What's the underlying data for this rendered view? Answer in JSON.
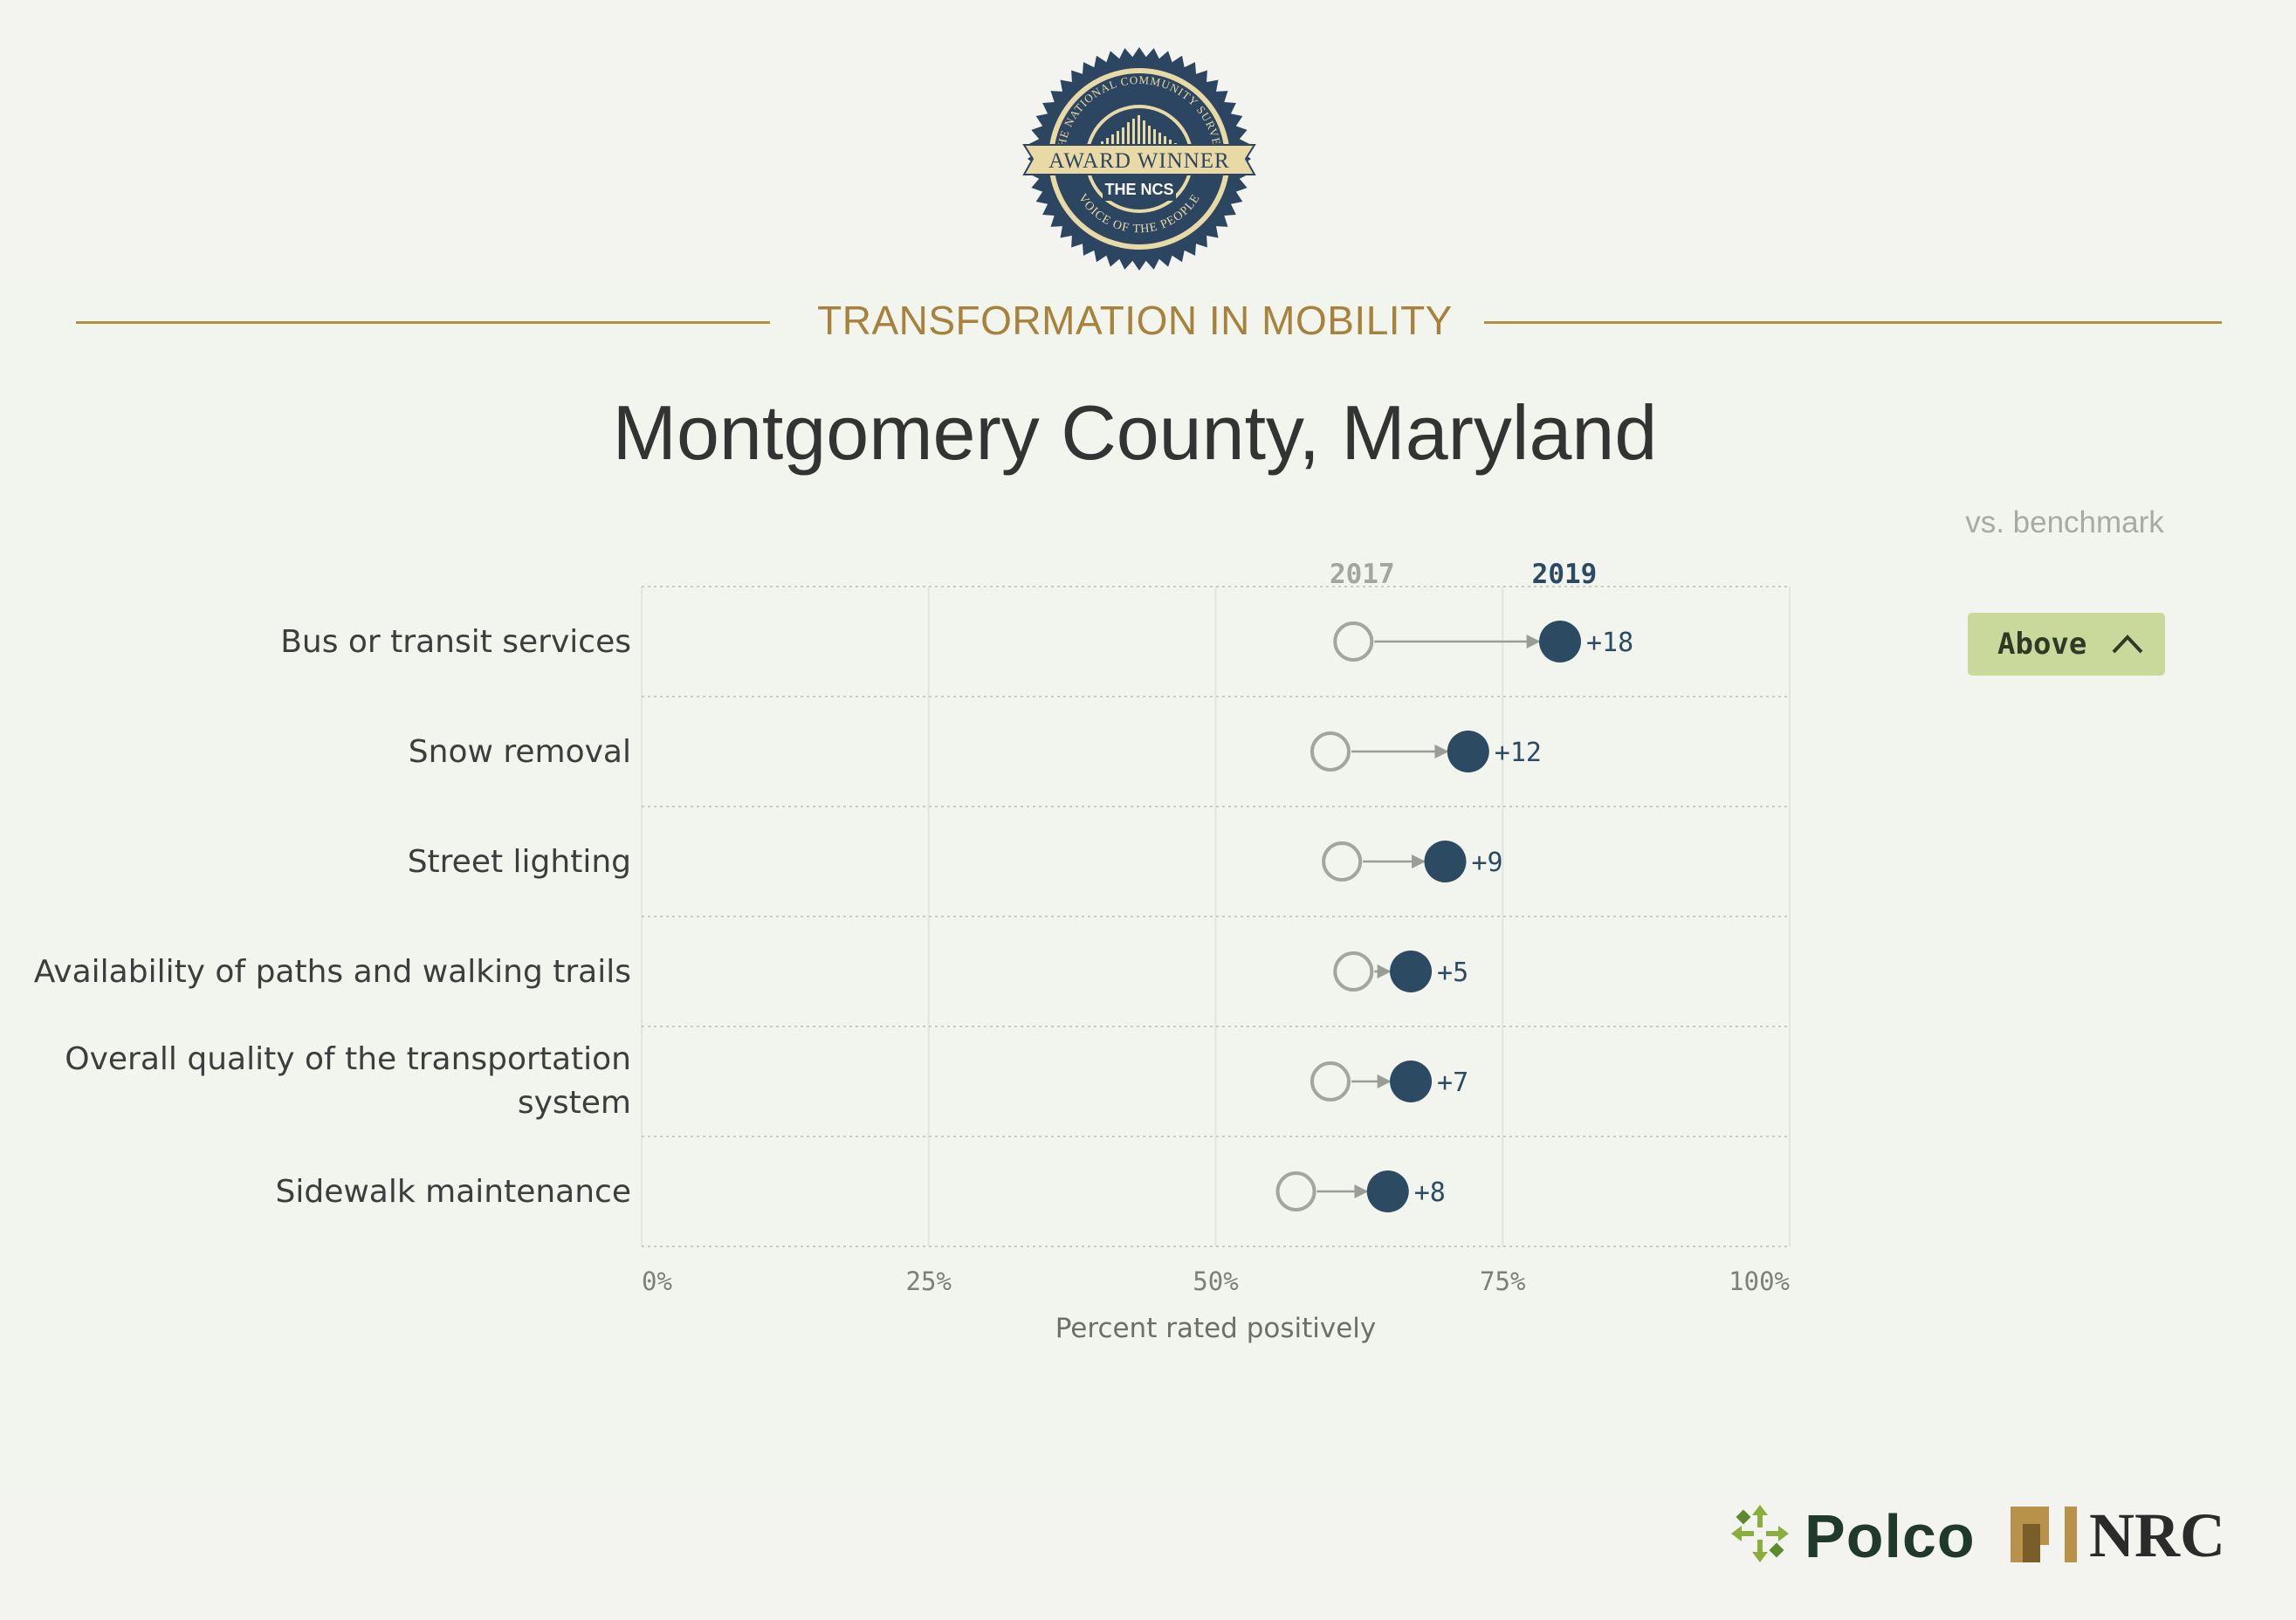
{
  "badge": {
    "ring_text_top": "THE NATIONAL COMMUNITY SURVEY",
    "ring_text_bottom": "VOICE OF THE PEOPLE",
    "ribbon_text": "AWARD WINNER",
    "brand_text": "THE NCS"
  },
  "section_title": "TRANSFORMATION IN MOBILITY",
  "title": "Montgomery County, Maryland",
  "benchmark": {
    "header": "vs. benchmark",
    "status": "Above"
  },
  "chart_data": {
    "type": "dumbbell",
    "series": [
      {
        "name": "2017",
        "color": "#a3a69e"
      },
      {
        "name": "2019",
        "color": "#2c4a62"
      }
    ],
    "xlabel": "Percent rated positively",
    "xlim": [
      0,
      100
    ],
    "x_ticks": [
      "0%",
      "25%",
      "50%",
      "75%",
      "100%"
    ],
    "grid": "dotted",
    "rows": [
      {
        "label": "Bus or transit services",
        "v2017": 62,
        "v2019": 80,
        "change": "+18"
      },
      {
        "label": "Snow removal",
        "v2017": 60,
        "v2019": 72,
        "change": "+12"
      },
      {
        "label": "Street lighting",
        "v2017": 61,
        "v2019": 70,
        "change": "+9"
      },
      {
        "label": "Availability of paths and walking trails",
        "v2017": 62,
        "v2019": 67,
        "change": "+5"
      },
      {
        "label": "Overall quality of the transportation system",
        "v2017": 60,
        "v2019": 67,
        "change": "+7"
      },
      {
        "label": "Sidewalk maintenance",
        "v2017": 57,
        "v2019": 65,
        "change": "+8"
      }
    ]
  },
  "logos": {
    "polco": "Polco",
    "nrc": "NRC"
  }
}
